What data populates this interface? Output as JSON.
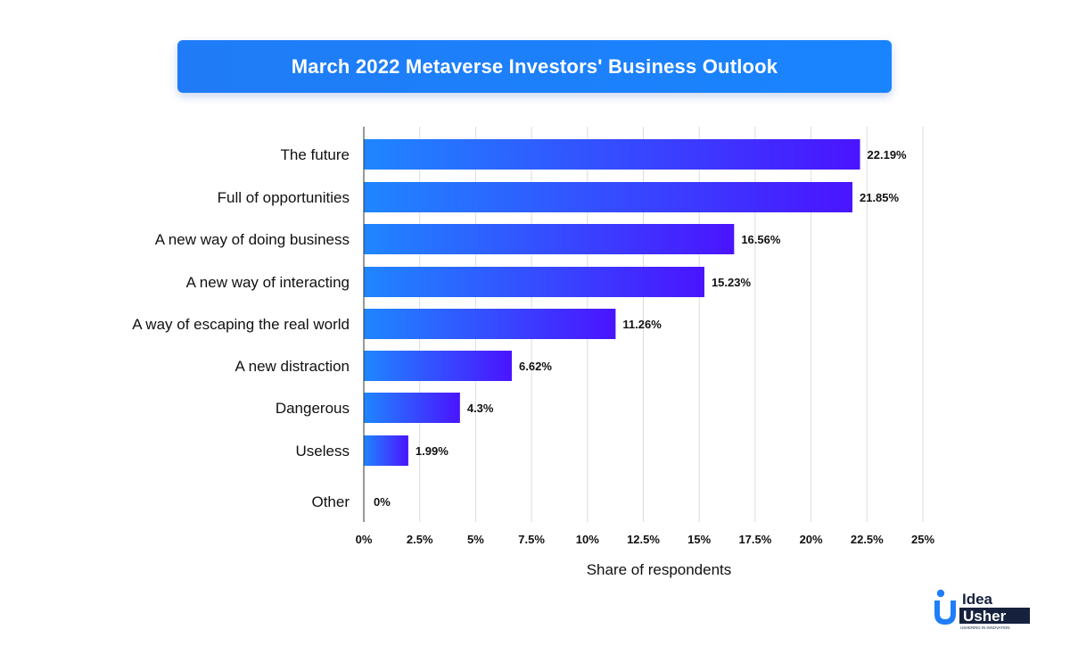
{
  "chart_data": {
    "type": "bar",
    "orientation": "horizontal",
    "title": "March 2022 Metaverse Investors' Business Outlook",
    "xlabel": "Share of respondents",
    "ylabel": "",
    "categories": [
      "The future",
      "Full of opportunities",
      "A new way of doing business",
      "A new way of interacting",
      "A way of escaping the real world",
      "A new distraction",
      "Dangerous",
      "Useless",
      "Other"
    ],
    "values": [
      22.19,
      21.85,
      16.56,
      15.23,
      11.26,
      6.62,
      4.3,
      1.99,
      0
    ],
    "value_labels": [
      "22.19%",
      "21.85%",
      "16.56%",
      "15.23%",
      "11.26%",
      "6.62%",
      "4.3%",
      "1.99%",
      "0%"
    ],
    "xlim": [
      0,
      25
    ],
    "x_ticks": [
      "0%",
      "2.5%",
      "5%",
      "7.5%",
      "10%",
      "12.5%",
      "15%",
      "17.5%",
      "20%",
      "22.5%",
      "25%"
    ],
    "grid": true,
    "bar_gradient": [
      "#1f86ff",
      "#4a14ff"
    ],
    "title_color": "#1f7ef8"
  },
  "logo": {
    "line1": "Idea",
    "line2": "Usher",
    "tagline": "USHERING IN INNOVATION"
  }
}
